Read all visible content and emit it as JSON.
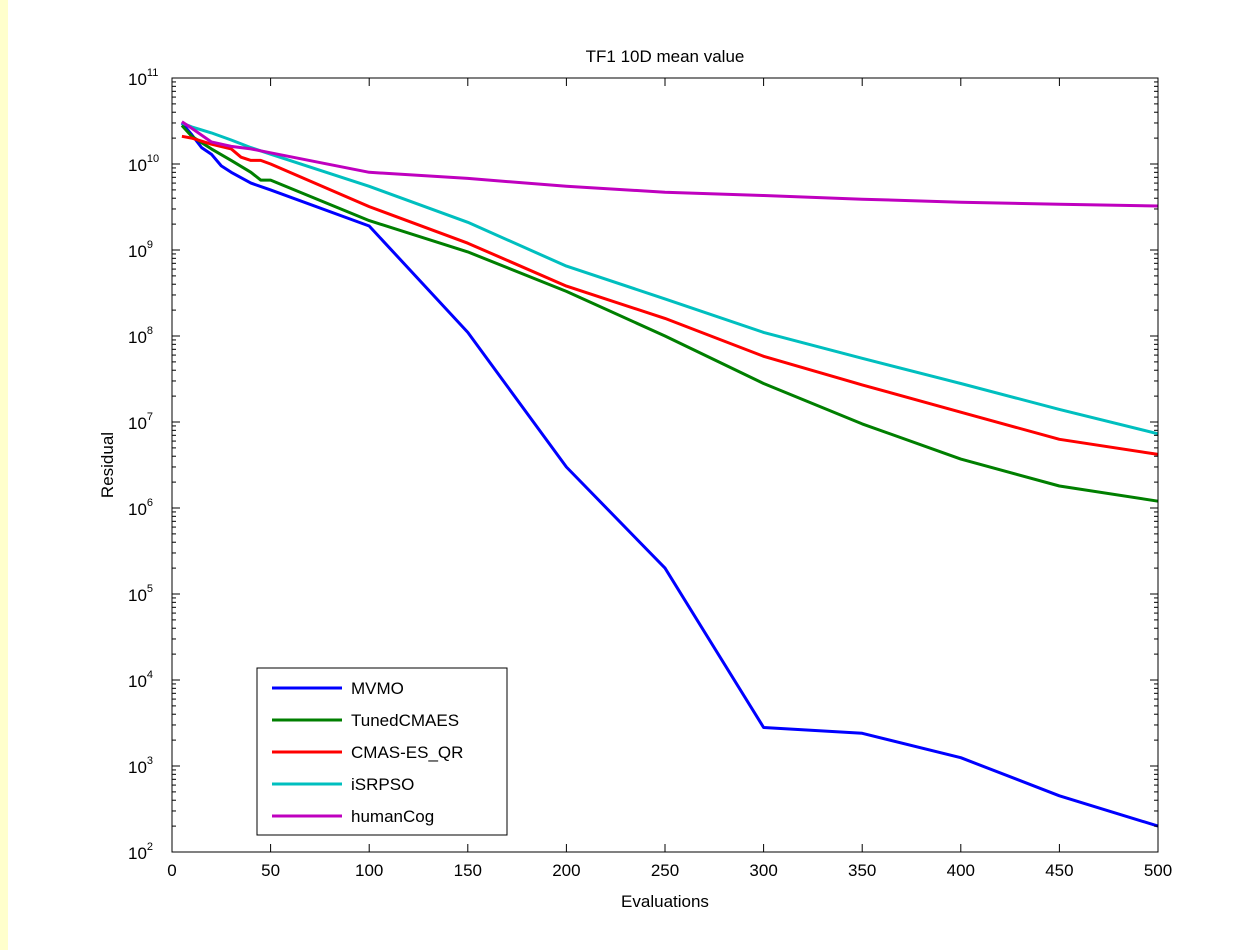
{
  "colors": {
    "page_border": "#ffffcc",
    "figure_bg": "#ffffff",
    "axes": "#000000"
  },
  "chart_data": {
    "type": "line",
    "title": "TF1 10D mean value",
    "xlabel": "Evaluations",
    "ylabel": "Residual",
    "y_scale": "log",
    "xlim": [
      0,
      500
    ],
    "ylim": [
      100,
      100000000000
    ],
    "x_ticks": [
      "0",
      "50",
      "100",
      "150",
      "200",
      "250",
      "300",
      "350",
      "400",
      "450",
      "500"
    ],
    "y_ticks": [
      {
        "base": "10",
        "exp": "2"
      },
      {
        "base": "10",
        "exp": "3"
      },
      {
        "base": "10",
        "exp": "4"
      },
      {
        "base": "10",
        "exp": "5"
      },
      {
        "base": "10",
        "exp": "6"
      },
      {
        "base": "10",
        "exp": "7"
      },
      {
        "base": "10",
        "exp": "8"
      },
      {
        "base": "10",
        "exp": "9"
      },
      {
        "base": "10",
        "exp": "10"
      },
      {
        "base": "10",
        "exp": "11"
      }
    ],
    "grid": false,
    "legend_position": "bottom-left",
    "series": [
      {
        "name": "MVMO",
        "color": "#0000ff",
        "x": [
          5,
          10,
          15,
          20,
          25,
          30,
          40,
          50,
          100,
          150,
          200,
          250,
          300,
          350,
          400,
          450,
          500
        ],
        "y": [
          30000000000.0,
          22000000000.0,
          15500000000.0,
          13000000000.0,
          9500000000.0,
          8000000000.0,
          6000000000.0,
          5000000000.0,
          1900000000.0,
          110000000.0,
          3000000.0,
          200000.0,
          2800.0,
          2400.0,
          1250.0,
          450,
          200
        ]
      },
      {
        "name": "TunedCMAES",
        "color": "#007f00",
        "x": [
          5,
          10,
          20,
          30,
          40,
          45,
          50,
          100,
          150,
          200,
          250,
          300,
          350,
          400,
          450,
          500
        ],
        "y": [
          28000000000.0,
          21000000000.0,
          15000000000.0,
          11000000000.0,
          8000000000.0,
          6500000000.0,
          6500000000.0,
          2200000000.0,
          950000000.0,
          330000000.0,
          100000000.0,
          28000000.0,
          9500000.0,
          3700000.0,
          1800000.0,
          1200000.0
        ]
      },
      {
        "name": "CMAS-ES_QR",
        "color": "#ff0000",
        "x": [
          5,
          10,
          20,
          30,
          35,
          40,
          45,
          50,
          100,
          150,
          200,
          250,
          300,
          350,
          400,
          450,
          500
        ],
        "y": [
          21000000000.0,
          20000000000.0,
          17000000000.0,
          15000000000.0,
          12000000000.0,
          11000000000.0,
          11000000000.0,
          10000000000.0,
          3200000000.0,
          1200000000.0,
          380000000.0,
          160000000.0,
          58000000.0,
          27000000.0,
          13000000.0,
          6300000.0,
          4200000.0
        ]
      },
      {
        "name": "iSRPSO",
        "color": "#00bfbf",
        "x": [
          5,
          10,
          20,
          30,
          40,
          50,
          100,
          150,
          200,
          250,
          300,
          350,
          400,
          450,
          500
        ],
        "y": [
          30000000000.0,
          27000000000.0,
          23000000000.0,
          19000000000.0,
          15500000000.0,
          13000000000.0,
          5500000000.0,
          2100000000.0,
          650000000.0,
          270000000.0,
          110000000.0,
          55000000.0,
          28000000.0,
          14000000.0,
          7300000.0
        ]
      },
      {
        "name": "humanCog",
        "color": "#bf00bf",
        "x": [
          5,
          10,
          20,
          30,
          40,
          50,
          100,
          150,
          200,
          250,
          300,
          350,
          400,
          450,
          500
        ],
        "y": [
          31000000000.0,
          26000000000.0,
          18000000000.0,
          16000000000.0,
          15000000000.0,
          13500000000.0,
          8000000000.0,
          6800000000.0,
          5500000000.0,
          4700000000.0,
          4300000000.0,
          3900000000.0,
          3600000000.0,
          3400000000.0,
          3250000000.0
        ]
      }
    ]
  }
}
